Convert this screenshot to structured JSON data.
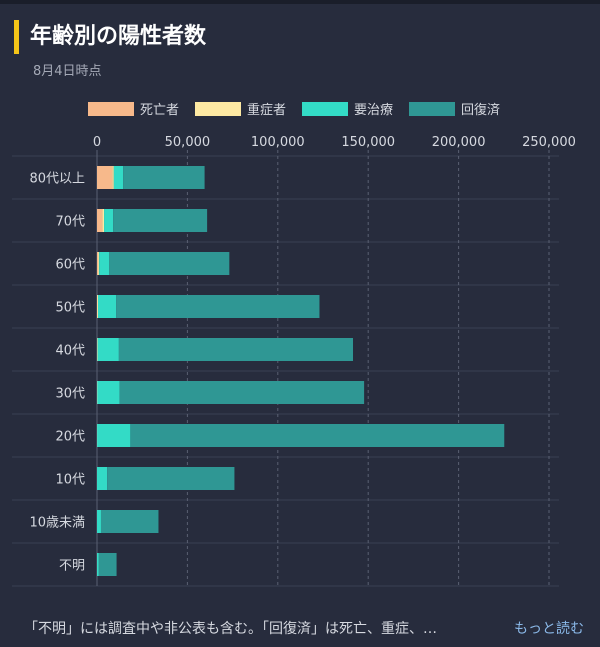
{
  "header": {
    "title": "年齢別の陽性者数",
    "subtitle": "8月4日時点"
  },
  "legend": [
    {
      "label": "死亡者",
      "color": "#f7b98b"
    },
    {
      "label": "重症者",
      "color": "#fde9a3"
    },
    {
      "label": "要治療",
      "color": "#33dbc6"
    },
    {
      "label": "回復済",
      "color": "#2f9794"
    }
  ],
  "footer": {
    "note": "「不明」には調査中や非公表も含む。「回復済」は死亡、重症、…",
    "more": "もっと読む"
  },
  "chart_data": {
    "type": "bar",
    "orientation": "horizontal",
    "stacked": true,
    "categories": [
      "80代以上",
      "70代",
      "60代",
      "50代",
      "40代",
      "30代",
      "20代",
      "10代",
      "10歳未満",
      "不明"
    ],
    "series": [
      {
        "name": "死亡者",
        "color": "#f7b98b",
        "values": [
          8500,
          3000,
          600,
          150,
          50,
          20,
          0,
          0,
          0,
          0
        ]
      },
      {
        "name": "重症者",
        "color": "#fde9a3",
        "values": [
          800,
          900,
          600,
          400,
          250,
          120,
          60,
          10,
          0,
          20
        ]
      },
      {
        "name": "要治療",
        "color": "#33dbc6",
        "values": [
          5200,
          5000,
          5600,
          10000,
          11800,
          12400,
          18400,
          5600,
          2200,
          1000
        ]
      },
      {
        "name": "回復済",
        "color": "#2f9794",
        "values": [
          45000,
          52000,
          66400,
          112500,
          129500,
          135200,
          206800,
          70400,
          31800,
          9800
        ]
      }
    ],
    "xlim": [
      0,
      250000
    ],
    "x_ticks": [
      "0",
      "50,000",
      "100,000",
      "150,000",
      "200,000",
      "250,000"
    ],
    "x_tick_values": [
      0,
      50000,
      100000,
      150000,
      200000,
      250000
    ],
    "grid": true
  }
}
